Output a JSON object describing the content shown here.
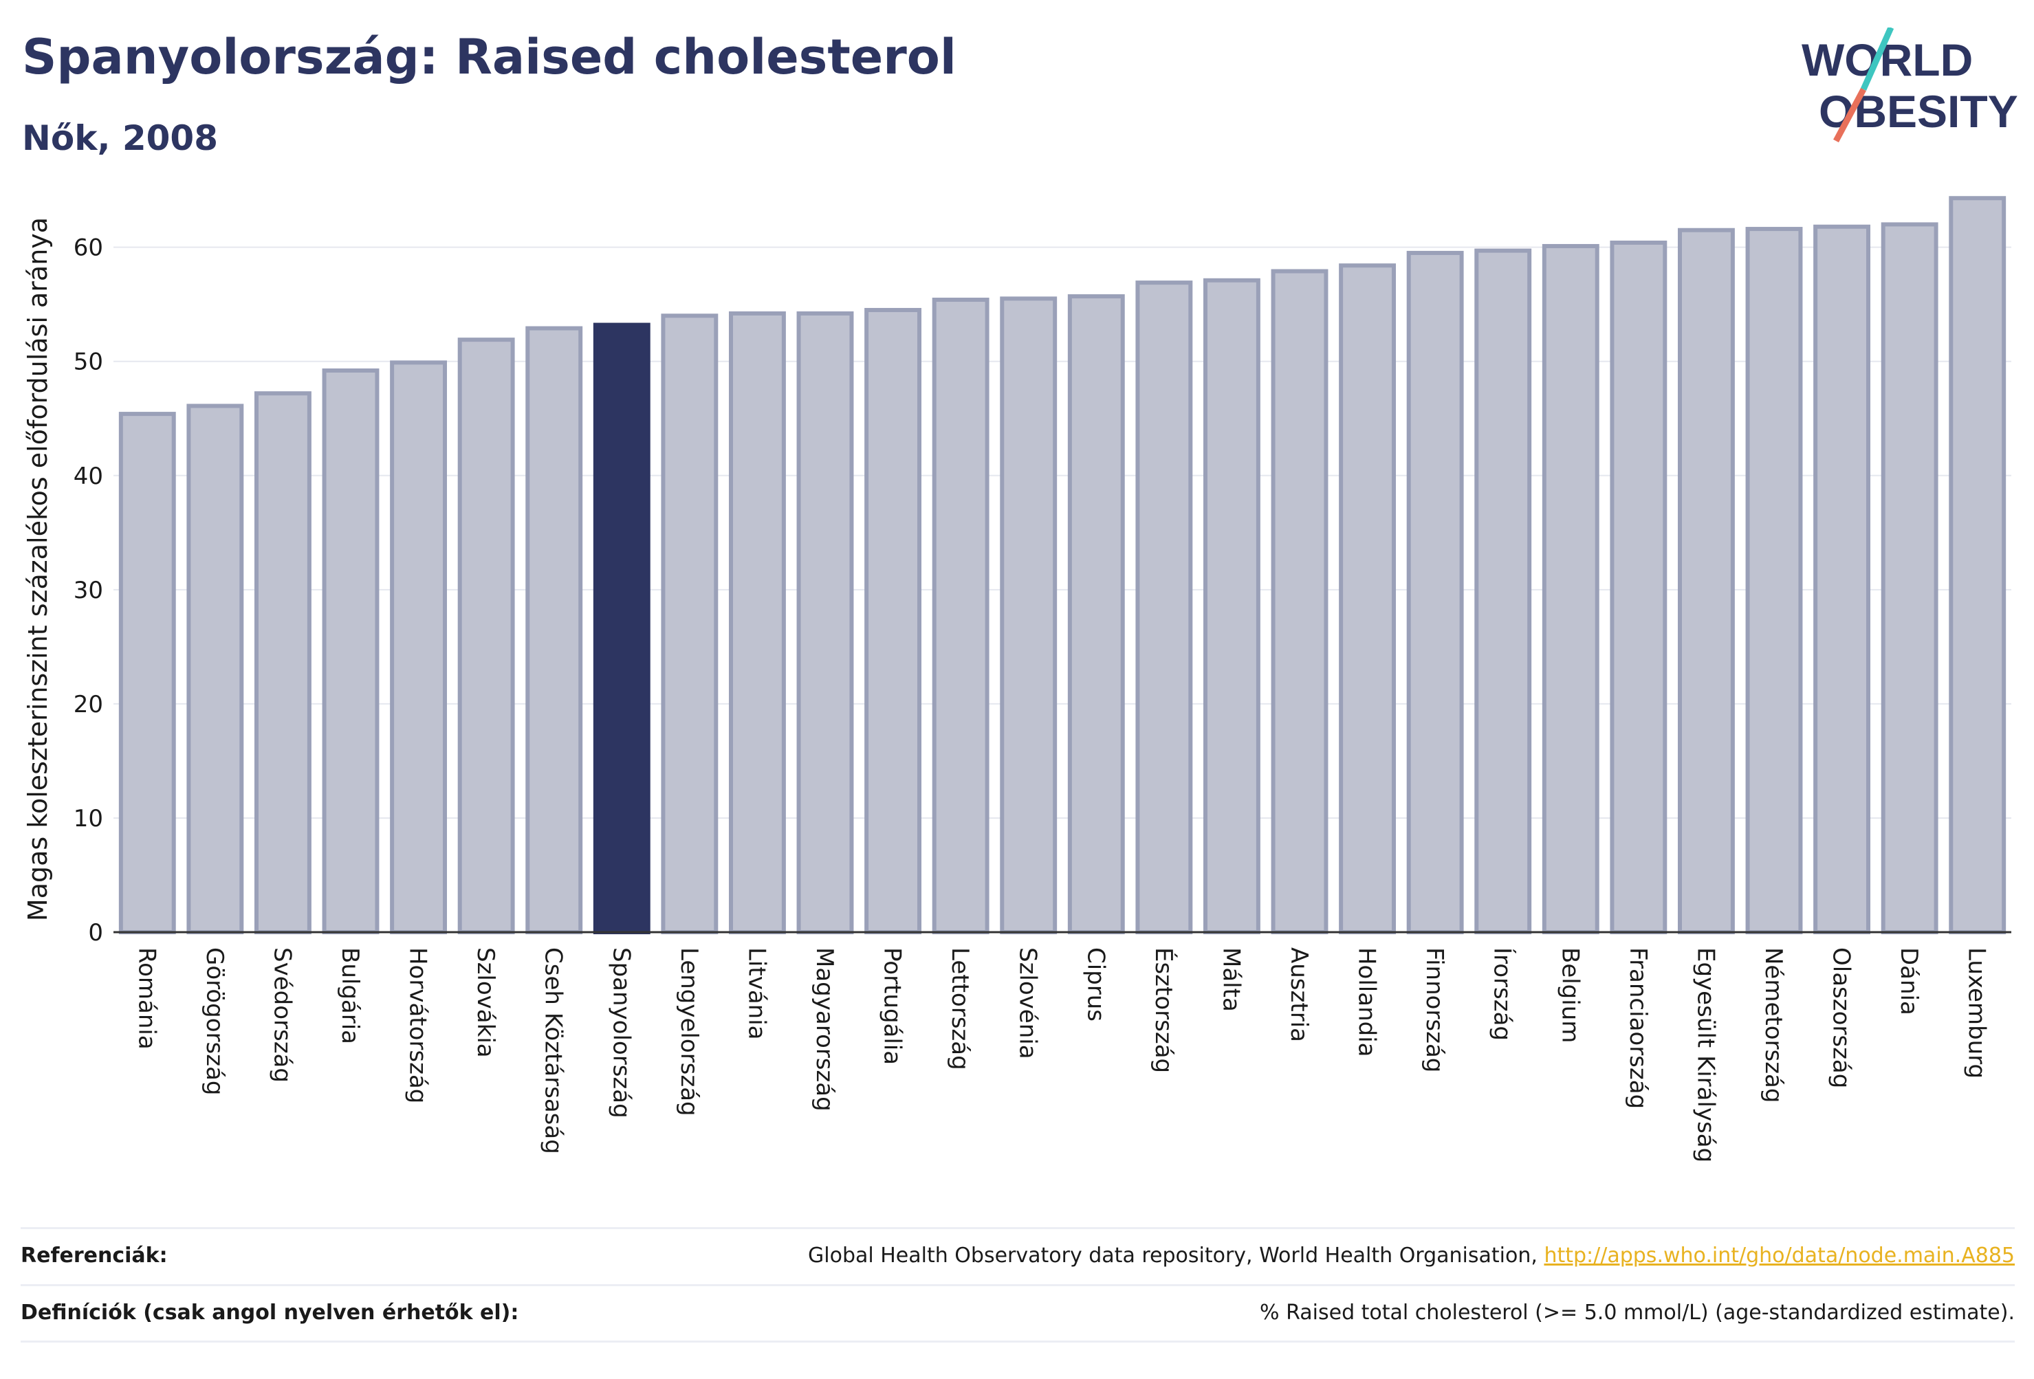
{
  "header": {
    "title": "Spanyolország: Raised cholesterol",
    "subtitle": "Nők, 2008"
  },
  "logo": {
    "line1": "WORLD",
    "line2": "OBESITY",
    "colors": {
      "text": "#2d3561",
      "slash_top": "#3ec6c0",
      "slash_bottom": "#e8705a"
    }
  },
  "colors": {
    "bar_fill": "#bfc2d0",
    "bar_stroke": "#9aa0b8",
    "highlight_fill": "#2d3561",
    "grid": "#e6e8ef",
    "axis": "#333333"
  },
  "chart_data": {
    "type": "bar",
    "ylabel": "Magas koleszterinszint százalékos előfordulási aránya",
    "ylim": [
      0,
      66
    ],
    "yticks": [
      0,
      10,
      20,
      30,
      40,
      50,
      60
    ],
    "grid": true,
    "highlight": "Spanyolország",
    "categories": [
      "Románia",
      "Görögország",
      "Svédország",
      "Bulgária",
      "Horvátország",
      "Szlovákia",
      "Cseh Köztársaság",
      "Spanyolország",
      "Lengyelország",
      "Litvánia",
      "Magyarország",
      "Portugália",
      "Lettország",
      "Szlovénia",
      "Ciprus",
      "Észtország",
      "Málta",
      "Ausztria",
      "Hollandia",
      "Finnország",
      "Írország",
      "Belgium",
      "Franciaország",
      "Egyesült Királyság",
      "Németország",
      "Olaszország",
      "Dánia",
      "Luxemburg"
    ],
    "values": [
      45.4,
      46.1,
      47.2,
      49.2,
      49.9,
      51.9,
      52.9,
      53.2,
      54.0,
      54.2,
      54.2,
      54.5,
      55.4,
      55.5,
      55.7,
      56.9,
      57.1,
      57.9,
      58.4,
      59.5,
      59.7,
      60.1,
      60.4,
      61.5,
      61.6,
      61.8,
      62.0,
      64.3
    ]
  },
  "footer": {
    "references_label": "Referenciák:",
    "references_text": "Global Health Observatory data repository, World Health Organisation, ",
    "references_link": "http://apps.who.int/gho/data/node.main.A885",
    "definitions_label": "Definíciók (csak angol nyelven érhetők el):",
    "definitions_text": "% Raised total cholesterol (>= 5.0 mmol/L) (age-standardized estimate)."
  }
}
